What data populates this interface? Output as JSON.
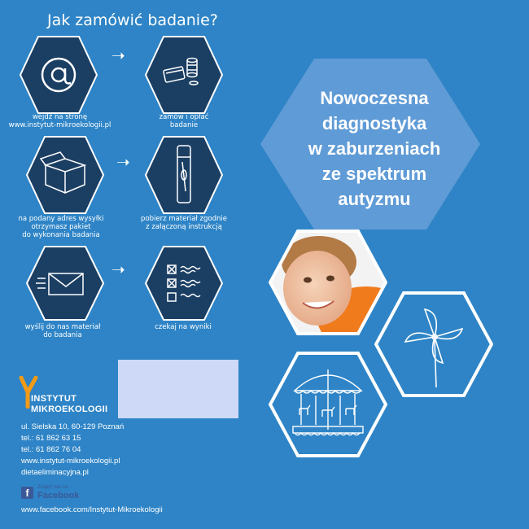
{
  "header": {
    "title": "Jak zamówić badanie?"
  },
  "steps": [
    {
      "icon": "at-sign-icon",
      "caption": [
        "wejdź na stronę",
        "www.instytut-mikroekologii.pl"
      ]
    },
    {
      "icon": "card-and-coins-icon",
      "caption": [
        "zamów i opłać",
        "badanie"
      ]
    },
    {
      "icon": "box-icon",
      "caption": [
        "na podany adres wysyłki",
        "otrzymasz pakiet",
        "do wykonania badania"
      ]
    },
    {
      "icon": "test-tube-icon",
      "caption": [
        "pobierz materiał zgodnie",
        "z załączoną instrukcją"
      ]
    },
    {
      "icon": "envelope-icon",
      "caption": [
        "wyślij do nas materiał",
        "do badania"
      ]
    },
    {
      "icon": "checklist-icon",
      "caption": [
        "czekaj na wyniki"
      ]
    }
  ],
  "hero": {
    "lines": [
      "Nowoczesna",
      "diagnostyka",
      "w zaburzeniach",
      "ze spektrum",
      "autyzmu"
    ]
  },
  "images": {
    "child_photo": "smiling-child-photo",
    "pinwheel": "pinwheel-icon",
    "carousel": "carousel-icon"
  },
  "logo": {
    "line1": "INSTYTUT",
    "line2": "MIKROEKOLOGII"
  },
  "contact": {
    "address": "ul. Sielska 10, 60-129 Poznań",
    "tel1": "tel.: 61 862 63 15",
    "tel2": "tel.: 61 862 76 04",
    "website": "www.instytut-mikroekologii.pl",
    "website2": "dietaeliminacyjna.pl"
  },
  "facebook": {
    "small": "Znajdź nas na",
    "word": "Facebook",
    "url": "www.facebook.com/Instytut-Mikroekologii"
  },
  "colors": {
    "background": "#2e84c6",
    "hex_dark": "#1b3e63",
    "hex_light": "#5f9bd6",
    "logo_orange": "#f29a16"
  }
}
